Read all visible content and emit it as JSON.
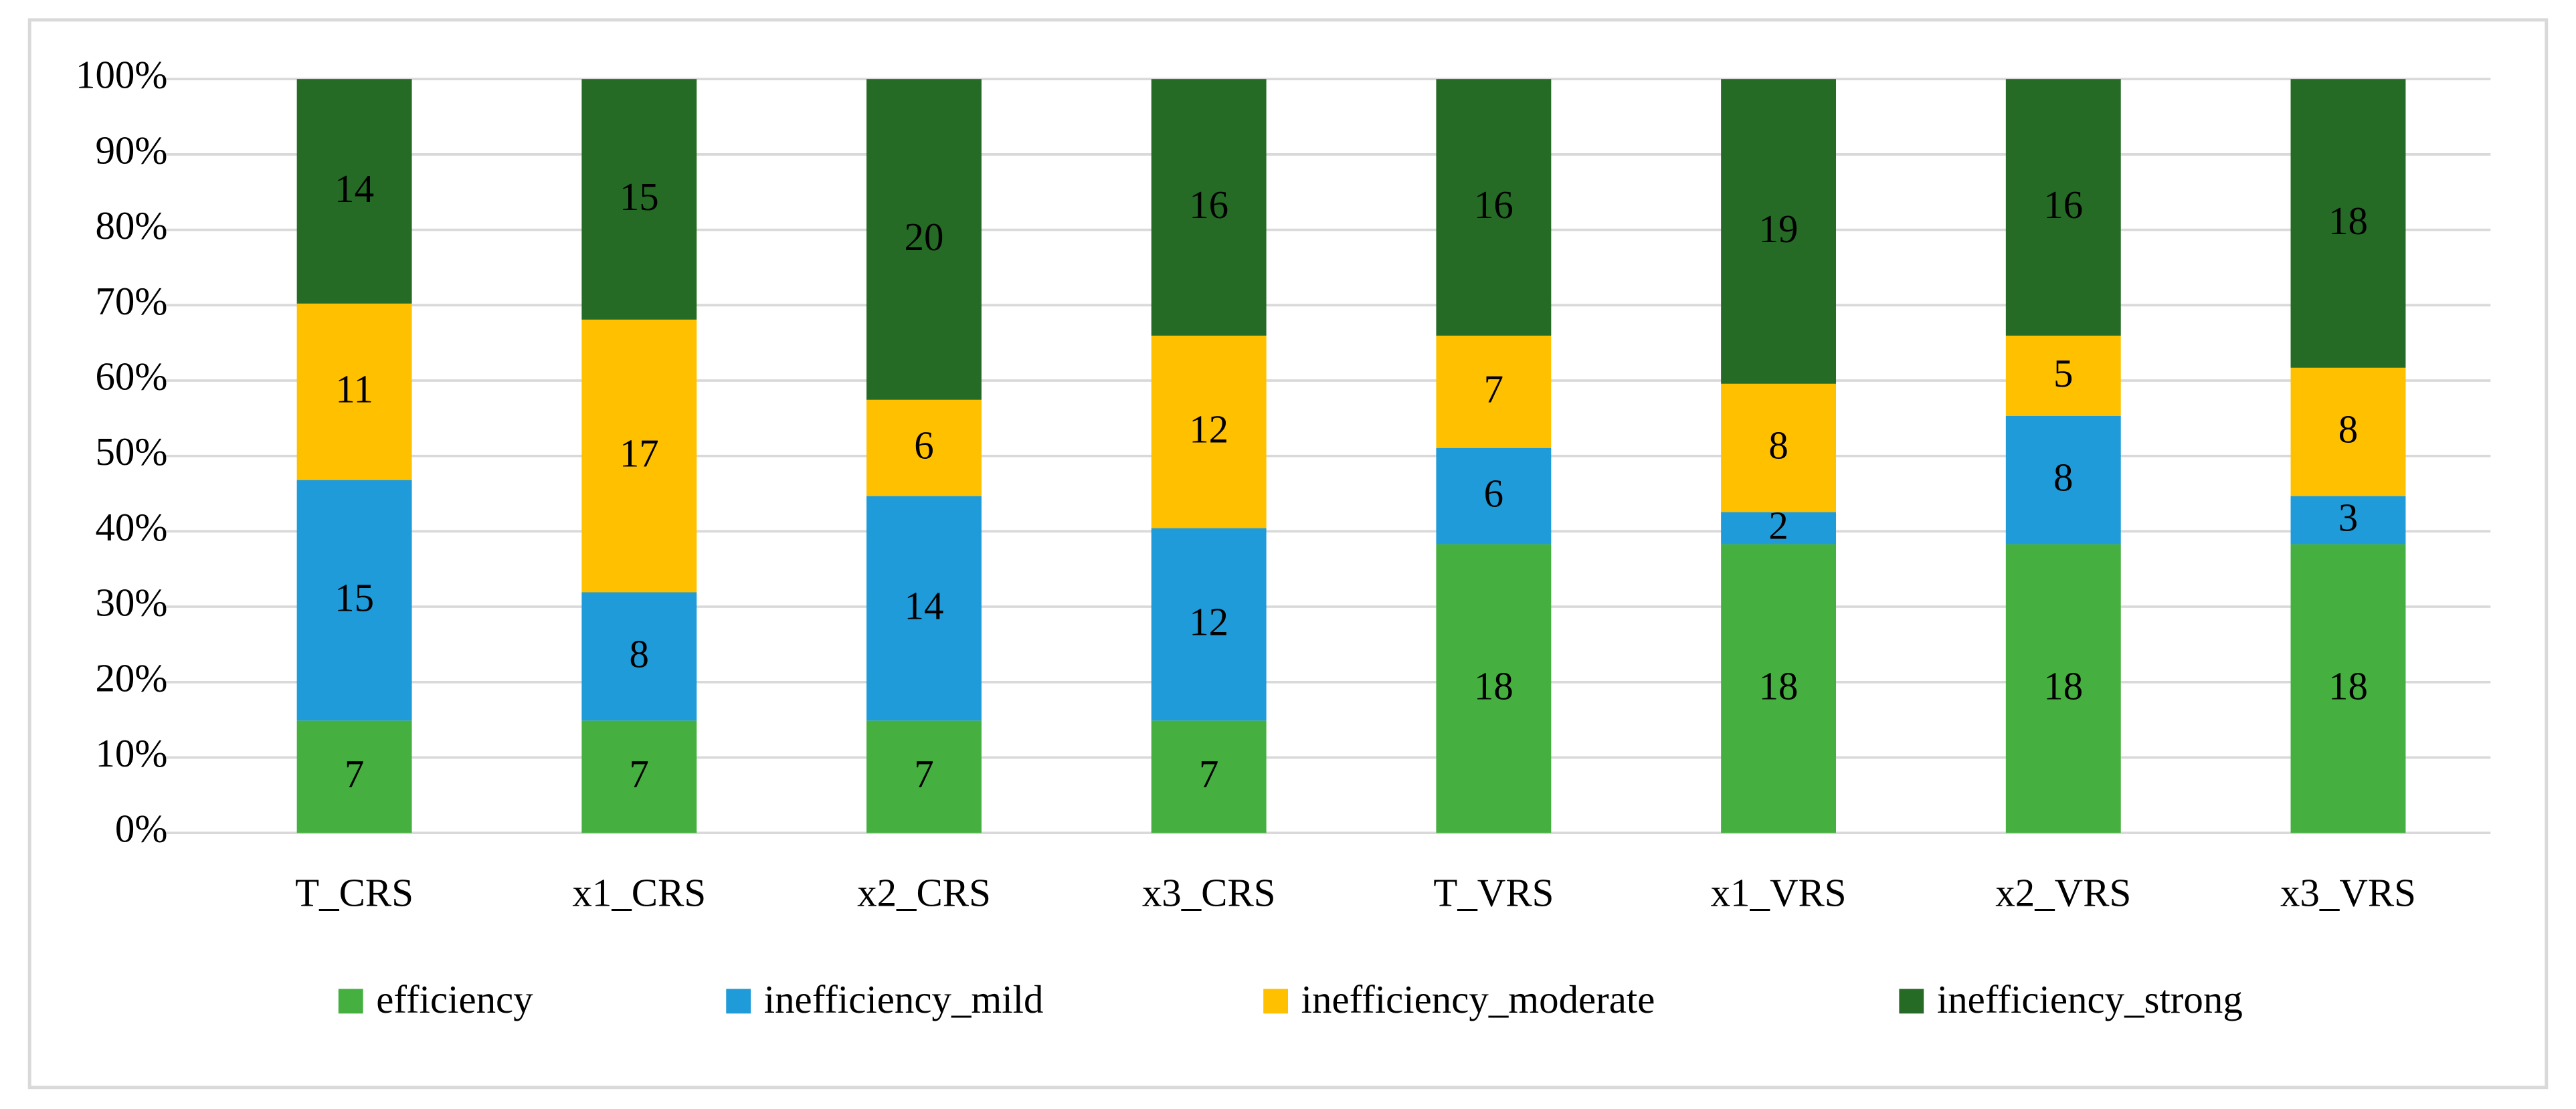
{
  "chart_data": {
    "type": "stacked_percent_bar",
    "categories": [
      "T_CRS",
      "x1_CRS",
      "x2_CRS",
      "x3_CRS",
      "T_VRS",
      "x1_VRS",
      "x2_VRS",
      "x3_VRS"
    ],
    "series": [
      {
        "name": "efficiency",
        "color": "#45b03f",
        "values": [
          7,
          7,
          7,
          7,
          18,
          18,
          18,
          18
        ]
      },
      {
        "name": "inefficiency_mild",
        "color": "#1f9bd9",
        "values": [
          15,
          8,
          14,
          12,
          6,
          2,
          8,
          3
        ]
      },
      {
        "name": "inefficiency_moderate",
        "color": "#ffc000",
        "values": [
          11,
          17,
          6,
          12,
          7,
          8,
          5,
          8
        ]
      },
      {
        "name": "inefficiency_strong",
        "color": "#256b25",
        "values": [
          14,
          15,
          20,
          16,
          16,
          19,
          16,
          18
        ]
      }
    ],
    "ylim": [
      0,
      100
    ],
    "yticks": [
      {
        "value": 0,
        "label": "0%"
      },
      {
        "value": 10,
        "label": "10%"
      },
      {
        "value": 20,
        "label": "20%"
      },
      {
        "value": 30,
        "label": "30%"
      },
      {
        "value": 40,
        "label": "40%"
      },
      {
        "value": 50,
        "label": "50%"
      },
      {
        "value": 60,
        "label": "60%"
      },
      {
        "value": 70,
        "label": "70%"
      },
      {
        "value": 80,
        "label": "80%"
      },
      {
        "value": 90,
        "label": "90%"
      },
      {
        "value": 100,
        "label": "100%"
      }
    ],
    "grid": true,
    "legend": "bottom"
  }
}
